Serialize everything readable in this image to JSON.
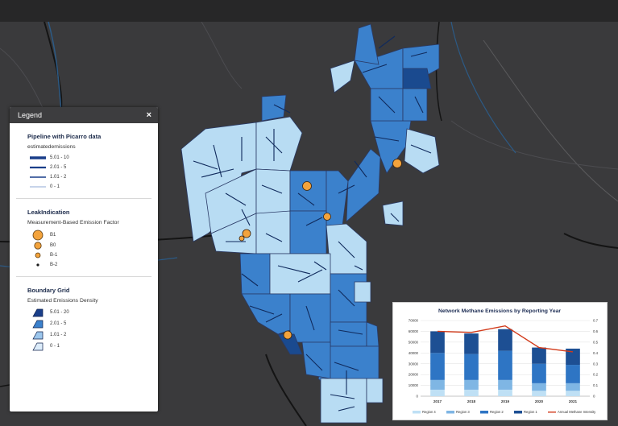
{
  "legend": {
    "title": "Legend",
    "close_glyph": "×",
    "pipeline": {
      "title": "Pipeline with Picarro data",
      "subtitle": "estimatedemissions",
      "items": [
        "5.01 - 10",
        "2.01 - 5",
        "1.01 - 2",
        "0 - 1"
      ]
    },
    "leak": {
      "title": "LeakIndication",
      "subtitle": "Measurement-Based Emission Factor",
      "items": [
        "B1",
        "B0",
        "B-1",
        "B-2"
      ]
    },
    "grid": {
      "title": "Boundary Grid",
      "subtitle": "Estimated Emissions Density",
      "items": [
        "5.01 - 20",
        "2.01 - 5",
        "1.01 - 2",
        "0 - 1"
      ]
    }
  },
  "colors": {
    "region4": "#a8d0ee",
    "region3": "#6fa8dc",
    "region2": "#2e75c4",
    "region1": "#1a4a8f",
    "intensity": "#d23a1a",
    "leak": "#f3a33c"
  },
  "chart_data": {
    "type": "bar",
    "stacked": true,
    "title": "Network Methane Emissions by Reporting Year",
    "categories": [
      "2017",
      "2018",
      "2019",
      "2020",
      "2021"
    ],
    "series": [
      {
        "name": "Region 4",
        "values": [
          6000,
          6000,
          6000,
          5000,
          5000
        ]
      },
      {
        "name": "Region 3",
        "values": [
          9000,
          9000,
          9000,
          7000,
          7000
        ]
      },
      {
        "name": "Region 2",
        "values": [
          25000,
          24000,
          27000,
          18000,
          17000
        ]
      },
      {
        "name": "Region 1",
        "values": [
          20000,
          19000,
          20000,
          15000,
          15000
        ]
      }
    ],
    "line": {
      "name": "Annual Methane Intensity",
      "values": [
        0.6,
        0.59,
        0.65,
        0.45,
        0.41
      ]
    },
    "y_ticks": [
      "0",
      "10000",
      "20000",
      "30000",
      "40000",
      "50000",
      "60000",
      "70000"
    ],
    "y2_ticks": [
      "0",
      "0.1",
      "0.2",
      "0.3",
      "0.4",
      "0.5",
      "0.6",
      "0.7"
    ],
    "ylim": [
      0,
      70000
    ],
    "y2lim": [
      0,
      0.7
    ],
    "grid": true,
    "legend_position": "bottom"
  }
}
